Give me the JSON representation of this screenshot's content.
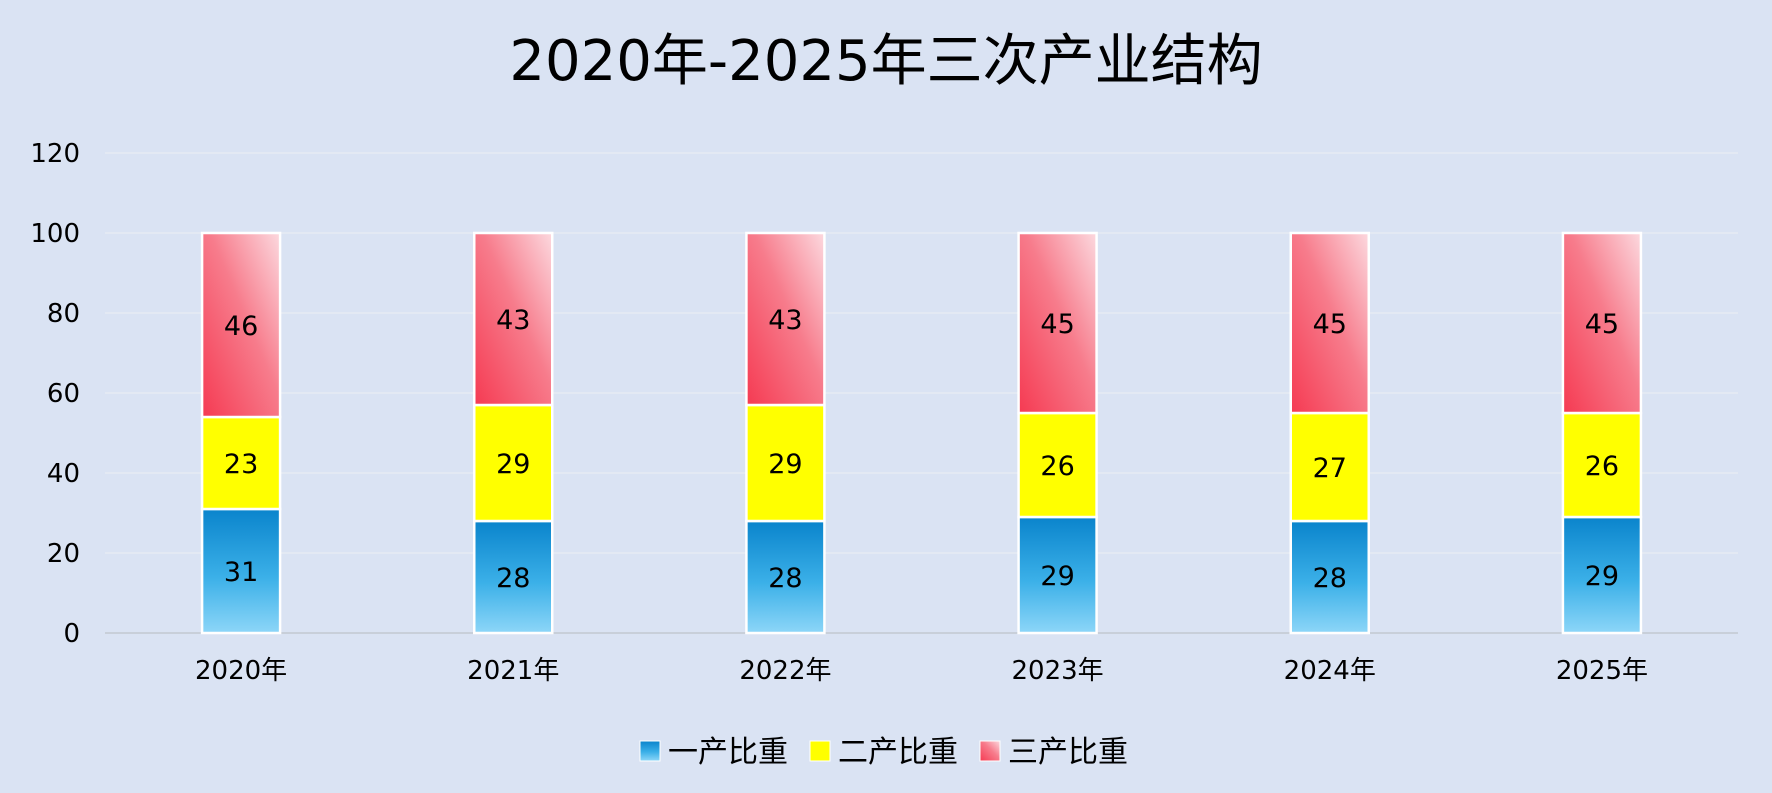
{
  "chart_data": {
    "type": "bar",
    "stacked": true,
    "title": "2020年-2025年三次产业结构",
    "categories": [
      "2020年",
      "2021年",
      "2022年",
      "2023年",
      "2024年",
      "2025年"
    ],
    "series": [
      {
        "name": "一产比重",
        "values": [
          31,
          28,
          28,
          29,
          28,
          29
        ],
        "color": "#1a8fd6"
      },
      {
        "name": "二产比重",
        "values": [
          23,
          29,
          29,
          26,
          27,
          26
        ],
        "color": "#ffff00"
      },
      {
        "name": "三产比重",
        "values": [
          46,
          43,
          43,
          45,
          45,
          45
        ],
        "color": "#f25062"
      }
    ],
    "ylim": [
      0,
      120
    ],
    "yticks": [
      0,
      20,
      40,
      60,
      80,
      100,
      120
    ],
    "grid": true,
    "legend_position": "bottom",
    "data_labels": true
  }
}
